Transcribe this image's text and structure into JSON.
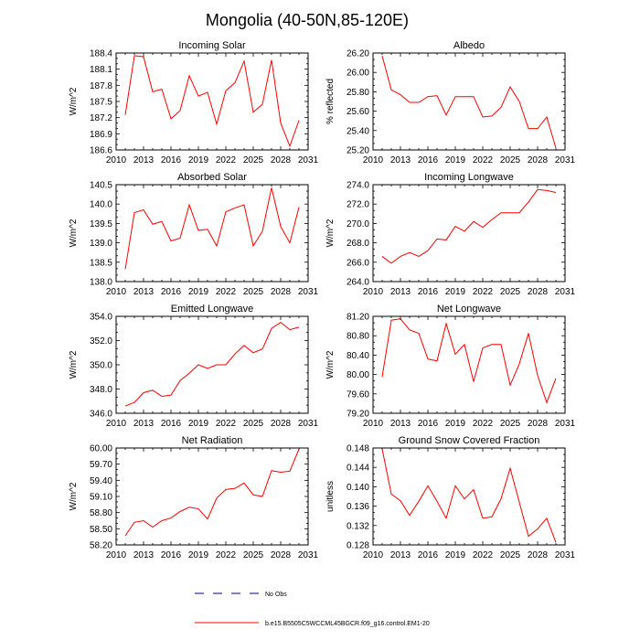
{
  "main_title": "Mongolia (40-50N,85-120E)",
  "colors": {
    "series": "#ff0000",
    "obs": "#000080",
    "axes": "#000000"
  },
  "legend": {
    "obs_label": "No Obs",
    "model_label": "b.e15.B5505C5WCCML45BGCR.f09_g16.control.EM1-20"
  },
  "chart_data": [
    {
      "type": "line",
      "title": "Incoming Solar",
      "ylabel": "W/m^2",
      "xlabel": "",
      "xlim": [
        2010,
        2031
      ],
      "ylim": [
        186.6,
        188.4
      ],
      "xticks": [
        2010,
        2013,
        2016,
        2019,
        2022,
        2025,
        2028,
        2031
      ],
      "yticks": [
        "186.6",
        "186.9",
        "187.2",
        "187.5",
        "187.8",
        "188.1",
        "188.4"
      ],
      "series": [
        {
          "name": "b.e15.B5505C5WCCML45BGCR.f09_g16.control.EM1-20",
          "x": [
            2011,
            2012,
            2013,
            2014,
            2015,
            2016,
            2017,
            2018,
            2019,
            2020,
            2021,
            2022,
            2023,
            2024,
            2025,
            2026,
            2027,
            2028,
            2029,
            2030
          ],
          "y": [
            187.25,
            188.35,
            188.33,
            187.68,
            187.73,
            187.18,
            187.33,
            187.98,
            187.6,
            187.67,
            187.08,
            187.7,
            187.85,
            188.25,
            187.3,
            187.45,
            188.27,
            187.1,
            186.67,
            187.15
          ]
        }
      ]
    },
    {
      "type": "line",
      "title": "Albedo",
      "ylabel": "% reflected",
      "xlabel": "",
      "xlim": [
        2010,
        2031
      ],
      "ylim": [
        25.2,
        26.2
      ],
      "xticks": [
        2010,
        2013,
        2016,
        2019,
        2022,
        2025,
        2028,
        2031
      ],
      "yticks": [
        "25.20",
        "25.40",
        "25.60",
        "25.80",
        "26.00",
        "26.20"
      ],
      "series": [
        {
          "name": "b.e15.B5505C5WCCML45BGCR.f09_g16.control.EM1-20",
          "x": [
            2011,
            2012,
            2013,
            2014,
            2015,
            2016,
            2017,
            2018,
            2019,
            2020,
            2021,
            2022,
            2023,
            2024,
            2025,
            2026,
            2027,
            2028,
            2029,
            2030
          ],
          "y": [
            26.17,
            25.82,
            25.77,
            25.69,
            25.69,
            25.75,
            25.76,
            25.56,
            25.75,
            25.75,
            25.75,
            25.54,
            25.55,
            25.64,
            25.85,
            25.7,
            25.42,
            25.42,
            25.54,
            25.22
          ]
        }
      ]
    },
    {
      "type": "line",
      "title": "Absorbed Solar",
      "ylabel": "W/m^2",
      "xlabel": "",
      "xlim": [
        2010,
        2031
      ],
      "ylim": [
        138.0,
        140.5
      ],
      "xticks": [
        2010,
        2013,
        2016,
        2019,
        2022,
        2025,
        2028,
        2031
      ],
      "yticks": [
        "138.0",
        "138.5",
        "139.0",
        "139.5",
        "140.0",
        "140.5"
      ],
      "series": [
        {
          "name": "b.e15.B5505C5WCCML45BGCR.f09_g16.control.EM1-20",
          "x": [
            2011,
            2012,
            2013,
            2014,
            2015,
            2016,
            2017,
            2018,
            2019,
            2020,
            2021,
            2022,
            2023,
            2024,
            2025,
            2026,
            2027,
            2028,
            2029,
            2030
          ],
          "y": [
            138.32,
            139.78,
            139.85,
            139.48,
            139.55,
            139.05,
            139.12,
            139.98,
            139.32,
            139.35,
            138.92,
            139.8,
            139.9,
            139.98,
            138.92,
            139.3,
            140.42,
            139.42,
            139.0,
            139.92
          ]
        }
      ]
    },
    {
      "type": "line",
      "title": "Incoming Longwave",
      "ylabel": "W/m^2",
      "xlabel": "",
      "xlim": [
        2010,
        2031
      ],
      "ylim": [
        264.0,
        274.0
      ],
      "xticks": [
        2010,
        2013,
        2016,
        2019,
        2022,
        2025,
        2028,
        2031
      ],
      "yticks": [
        "264.0",
        "266.0",
        "268.0",
        "270.0",
        "272.0",
        "274.0"
      ],
      "series": [
        {
          "name": "b.e15.B5505C5WCCML45BGCR.f09_g16.control.EM1-20",
          "x": [
            2011,
            2012,
            2013,
            2014,
            2015,
            2016,
            2017,
            2018,
            2019,
            2020,
            2021,
            2022,
            2023,
            2024,
            2025,
            2026,
            2027,
            2028,
            2029,
            2030
          ],
          "y": [
            266.6,
            265.9,
            266.6,
            267.0,
            266.6,
            267.2,
            268.4,
            268.3,
            269.7,
            269.2,
            270.2,
            269.6,
            270.4,
            271.1,
            271.1,
            271.1,
            272.2,
            273.5,
            273.4,
            273.2
          ]
        }
      ]
    },
    {
      "type": "line",
      "title": "Emitted Longwave",
      "ylabel": "W/m^2",
      "xlabel": "",
      "xlim": [
        2010,
        2031
      ],
      "ylim": [
        346.0,
        354.0
      ],
      "xticks": [
        2010,
        2013,
        2016,
        2019,
        2022,
        2025,
        2028,
        2031
      ],
      "yticks": [
        "346.0",
        "348.0",
        "350.0",
        "352.0",
        "354.0"
      ],
      "series": [
        {
          "name": "b.e15.B5505C5WCCML45BGCR.f09_g16.control.EM1-20",
          "x": [
            2011,
            2012,
            2013,
            2014,
            2015,
            2016,
            2017,
            2018,
            2019,
            2020,
            2021,
            2022,
            2023,
            2024,
            2025,
            2026,
            2027,
            2028,
            2029,
            2030
          ],
          "y": [
            346.6,
            346.9,
            347.7,
            347.9,
            347.4,
            347.5,
            348.7,
            349.3,
            350.0,
            349.7,
            350.0,
            350.0,
            350.9,
            351.6,
            351.0,
            351.3,
            353.0,
            353.5,
            352.9,
            353.1
          ]
        }
      ]
    },
    {
      "type": "line",
      "title": "Net Longwave",
      "ylabel": "W/m^2",
      "xlabel": "",
      "xlim": [
        2010,
        2031
      ],
      "ylim": [
        79.2,
        81.2
      ],
      "xticks": [
        2010,
        2013,
        2016,
        2019,
        2022,
        2025,
        2028,
        2031
      ],
      "yticks": [
        "79.20",
        "79.60",
        "80.00",
        "80.40",
        "80.80",
        "81.20"
      ],
      "series": [
        {
          "name": "b.e15.B5505C5WCCML45BGCR.f09_g16.control.EM1-20",
          "x": [
            2011,
            2012,
            2013,
            2014,
            2015,
            2016,
            2017,
            2018,
            2019,
            2020,
            2021,
            2022,
            2023,
            2024,
            2025,
            2026,
            2027,
            2028,
            2029,
            2030
          ],
          "y": [
            79.95,
            81.12,
            81.15,
            80.92,
            80.85,
            80.32,
            80.28,
            81.05,
            80.42,
            80.62,
            79.85,
            80.55,
            80.62,
            80.62,
            79.78,
            80.22,
            80.85,
            79.98,
            79.42,
            79.92
          ]
        }
      ]
    },
    {
      "type": "line",
      "title": "Net Radiation",
      "ylabel": "W/m^2",
      "xlabel": "",
      "xlim": [
        2010,
        2031
      ],
      "ylim": [
        58.2,
        60.0
      ],
      "xticks": [
        2010,
        2013,
        2016,
        2019,
        2022,
        2025,
        2028,
        2031
      ],
      "yticks": [
        "58.20",
        "58.50",
        "58.80",
        "59.10",
        "59.40",
        "59.70",
        "60.00"
      ],
      "series": [
        {
          "name": "b.e15.B5505C5WCCML45BGCR.f09_g16.control.EM1-20",
          "x": [
            2011,
            2012,
            2013,
            2014,
            2015,
            2016,
            2017,
            2018,
            2019,
            2020,
            2021,
            2022,
            2023,
            2024,
            2025,
            2026,
            2027,
            2028,
            2029,
            2030
          ],
          "y": [
            58.37,
            58.62,
            58.65,
            58.53,
            58.65,
            58.7,
            58.82,
            58.9,
            58.87,
            58.68,
            59.07,
            59.23,
            59.25,
            59.35,
            59.13,
            59.1,
            59.58,
            59.55,
            59.57,
            59.98
          ]
        }
      ]
    },
    {
      "type": "line",
      "title": "Ground Snow Covered Fraction",
      "ylabel": "unitless",
      "xlabel": "",
      "xlim": [
        2010,
        2031
      ],
      "ylim": [
        0.128,
        0.148
      ],
      "xticks": [
        2010,
        2013,
        2016,
        2019,
        2022,
        2025,
        2028,
        2031
      ],
      "yticks": [
        "0.128",
        "0.132",
        "0.136",
        "0.140",
        "0.144",
        "0.148"
      ],
      "series": [
        {
          "name": "b.e15.B5505C5WCCML45BGCR.f09_g16.control.EM1-20",
          "x": [
            2011,
            2012,
            2013,
            2014,
            2015,
            2016,
            2017,
            2018,
            2019,
            2020,
            2021,
            2022,
            2023,
            2024,
            2025,
            2026,
            2027,
            2028,
            2029,
            2030
          ],
          "y": [
            0.1478,
            0.1385,
            0.1371,
            0.1341,
            0.137,
            0.1402,
            0.137,
            0.1335,
            0.1402,
            0.1375,
            0.1394,
            0.1335,
            0.1338,
            0.1375,
            0.1438,
            0.1368,
            0.1298,
            0.1313,
            0.1335,
            0.1285
          ]
        }
      ]
    }
  ]
}
